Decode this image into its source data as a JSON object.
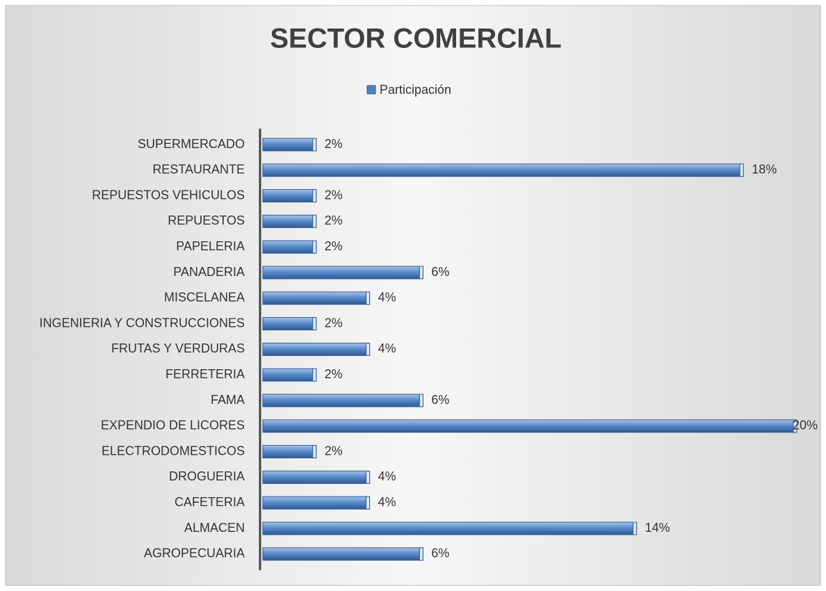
{
  "chart_data": {
    "type": "bar",
    "orientation": "horizontal",
    "title": "SECTOR COMERCIAL",
    "legend": "top",
    "grid": false,
    "categories": [
      "SUPERMERCADO",
      "RESTAURANTE",
      "REPUESTOS VEHICULOS",
      "REPUESTOS",
      "PAPELERIA",
      "PANADERIA",
      "MISCELANEA ",
      "INGENIERIA Y CONSTRUCCIONES",
      "FRUTAS Y VERDURAS",
      "FERRETERIA ",
      "FAMA",
      "EXPENDIO DE LICORES ",
      "ELECTRODOMESTICOS",
      "DROGUERIA",
      "CAFETERIA ",
      "ALMACEN",
      "AGROPECUARIA"
    ],
    "series": [
      {
        "name": "Participación",
        "color": "#4f81bd",
        "values": [
          2,
          18,
          2,
          2,
          2,
          6,
          4,
          2,
          4,
          2,
          6,
          20,
          2,
          4,
          4,
          14,
          6
        ],
        "value_labels": [
          "2%",
          "18%",
          "2%",
          "2%",
          "2%",
          "6%",
          "4%",
          "2%",
          "4%",
          "2%",
          "6%",
          "20%",
          "2%",
          "4%",
          "4%",
          "14%",
          "6%"
        ]
      }
    ]
  }
}
